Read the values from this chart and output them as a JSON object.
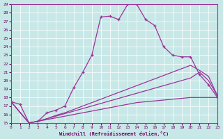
{
  "xlabel": "Windchill (Refroidissement éolien,°C)",
  "bg_color": "#c8e8e8",
  "line_color": "#993399",
  "xlim": [
    0,
    23
  ],
  "ylim": [
    15,
    29
  ],
  "xticks": [
    0,
    1,
    2,
    3,
    4,
    5,
    6,
    7,
    8,
    9,
    10,
    11,
    12,
    13,
    14,
    15,
    16,
    17,
    18,
    19,
    20,
    21,
    22,
    23
  ],
  "yticks": [
    15,
    16,
    17,
    18,
    19,
    20,
    21,
    22,
    23,
    24,
    25,
    26,
    27,
    28,
    29
  ],
  "curve1_x": [
    0,
    1,
    2,
    3,
    4,
    5,
    6,
    7,
    8,
    9,
    10,
    11,
    12,
    13,
    14,
    15,
    16,
    17,
    18,
    19,
    20,
    21,
    22,
    23
  ],
  "curve1_y": [
    17.5,
    17.2,
    15.0,
    15.2,
    16.2,
    16.5,
    17.0,
    19.2,
    21.0,
    23.0,
    27.5,
    27.6,
    27.2,
    29.0,
    29.0,
    27.2,
    26.5,
    24.0,
    23.0,
    22.8,
    22.8,
    20.7,
    19.5,
    18.0
  ],
  "curve2_x": [
    0,
    2,
    3,
    4,
    5,
    6,
    7,
    8,
    9,
    10,
    11,
    12,
    13,
    14,
    15,
    16,
    17,
    18,
    19,
    20,
    21,
    22,
    23
  ],
  "curve2_y": [
    17.5,
    15.0,
    15.2,
    15.4,
    15.6,
    15.8,
    16.0,
    16.2,
    16.4,
    16.6,
    16.8,
    17.0,
    17.2,
    17.4,
    17.5,
    17.6,
    17.7,
    17.8,
    17.9,
    18.0,
    18.0,
    18.0,
    18.0
  ],
  "curve3_x": [
    0,
    2,
    3,
    4,
    5,
    6,
    7,
    8,
    9,
    10,
    11,
    12,
    13,
    14,
    15,
    16,
    17,
    18,
    19,
    20,
    21,
    22,
    23
  ],
  "curve3_y": [
    17.5,
    15.0,
    15.2,
    15.5,
    15.8,
    16.1,
    16.4,
    16.7,
    17.0,
    17.3,
    17.6,
    17.9,
    18.2,
    18.5,
    18.8,
    19.1,
    19.4,
    19.7,
    20.0,
    20.3,
    21.0,
    20.0,
    18.2
  ],
  "curve4_x": [
    0,
    2,
    3,
    4,
    5,
    6,
    7,
    8,
    9,
    10,
    11,
    12,
    13,
    14,
    15,
    16,
    17,
    18,
    19,
    20,
    21,
    22,
    23
  ],
  "curve4_y": [
    17.5,
    15.0,
    15.2,
    15.5,
    15.9,
    16.2,
    16.6,
    17.0,
    17.4,
    17.8,
    18.2,
    18.6,
    19.0,
    19.4,
    19.8,
    20.2,
    20.6,
    21.0,
    21.4,
    21.8,
    21.2,
    20.5,
    18.2
  ]
}
